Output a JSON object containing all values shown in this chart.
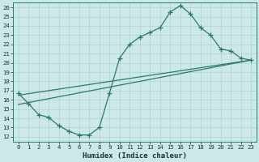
{
  "xlabel": "Humidex (Indice chaleur)",
  "bg_color": "#cce8e8",
  "grid_color": "#b0d0d0",
  "line_color": "#2a7a6a",
  "xlim": [
    -0.5,
    23.5
  ],
  "ylim": [
    11.5,
    26.5
  ],
  "xticks": [
    0,
    1,
    2,
    3,
    4,
    5,
    6,
    7,
    8,
    9,
    10,
    11,
    12,
    13,
    14,
    15,
    16,
    17,
    18,
    19,
    20,
    21,
    22,
    23
  ],
  "yticks": [
    12,
    13,
    14,
    15,
    16,
    17,
    18,
    19,
    20,
    21,
    22,
    23,
    24,
    25,
    26
  ],
  "line1_x": [
    0,
    1,
    2,
    3,
    4,
    5,
    6,
    7,
    8,
    9,
    10,
    11,
    12,
    13,
    14,
    15,
    16,
    17,
    18,
    19,
    20,
    21,
    22,
    23
  ],
  "line1_y": [
    16.7,
    15.6,
    14.4,
    14.1,
    13.2,
    12.6,
    12.2,
    12.2,
    13.0,
    16.7,
    20.5,
    22.0,
    22.8,
    23.3,
    23.8,
    25.5,
    26.2,
    25.3,
    23.8,
    23.0,
    21.5,
    21.3,
    20.5,
    20.3
  ],
  "line2_x": [
    0,
    23
  ],
  "line2_y": [
    16.5,
    20.3
  ],
  "line3_x": [
    0,
    23
  ],
  "line3_y": [
    15.5,
    20.3
  ]
}
